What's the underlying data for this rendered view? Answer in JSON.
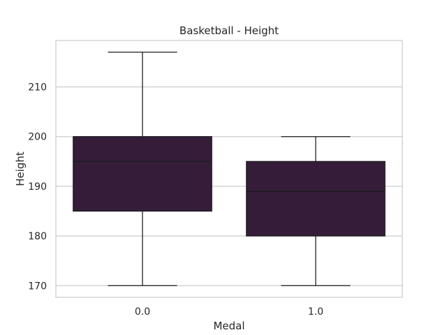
{
  "chart_data": {
    "type": "box",
    "title": "Basketball - Height",
    "xlabel": "Medal",
    "ylabel": "Height",
    "categories": [
      "0.0",
      "1.0"
    ],
    "boxes": [
      {
        "category": "0.0",
        "whisker_low": 170,
        "q1": 185,
        "median": 195,
        "q3": 200,
        "whisker_high": 217
      },
      {
        "category": "1.0",
        "whisker_low": 170,
        "q1": 180,
        "median": 189,
        "q3": 195,
        "whisker_high": 200
      }
    ],
    "yticks": [
      170,
      180,
      190,
      200,
      210
    ],
    "ylim": [
      167.65,
      219.35
    ],
    "grid": true,
    "colors": {
      "box_fill": "#351d3a",
      "line": "#1a1a1a",
      "grid": "#cccccc",
      "frame": "#cccccc"
    }
  }
}
